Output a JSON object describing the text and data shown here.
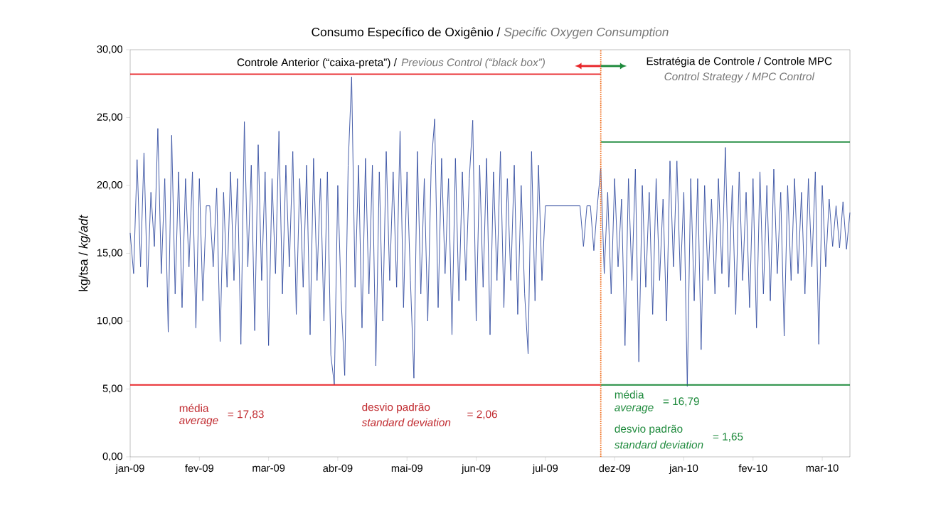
{
  "chart_data": {
    "type": "line",
    "title": "Consumo Específico de Oxigênio /",
    "subtitle": "Specific Oxygen Consumption",
    "ylabel": "kg/tsa / *kg/adt*",
    "categories": [
      "jan-09",
      null,
      null,
      null,
      null,
      null,
      null,
      null,
      null,
      null,
      null,
      null,
      null,
      null,
      null,
      null,
      null,
      null,
      null,
      null,
      "fev-09",
      null,
      null,
      null,
      null,
      null,
      null,
      null,
      null,
      null,
      null,
      null,
      null,
      null,
      null,
      null,
      null,
      null,
      null,
      null,
      "mar-09",
      null,
      null,
      null,
      null,
      null,
      null,
      null,
      null,
      null,
      null,
      null,
      null,
      null,
      null,
      null,
      null,
      null,
      null,
      null,
      "abr-09",
      null,
      null,
      null,
      null,
      null,
      null,
      null,
      null,
      null,
      null,
      null,
      null,
      null,
      null,
      null,
      null,
      null,
      null,
      null,
      "mai-09",
      null,
      null,
      null,
      null,
      null,
      null,
      null,
      null,
      null,
      null,
      null,
      null,
      null,
      null,
      null,
      null,
      null,
      null,
      null,
      "jun-09",
      null,
      null,
      null,
      null,
      null,
      null,
      null,
      null,
      null,
      null,
      null,
      null,
      null,
      null,
      null,
      null,
      null,
      null,
      null,
      "jul-09",
      null,
      null,
      null,
      null,
      null,
      null,
      null,
      null,
      null,
      null,
      null,
      null,
      null,
      null,
      null,
      null,
      null,
      null,
      null,
      "dez-09",
      null,
      null,
      null,
      null,
      null,
      null,
      null,
      null,
      null,
      null,
      null,
      null,
      null,
      null,
      null,
      null,
      null,
      null,
      null,
      "jan-10",
      null,
      null,
      null,
      null,
      null,
      null,
      null,
      null,
      null,
      null,
      null,
      null,
      null,
      null,
      null,
      null,
      null,
      null,
      null,
      "fev-10",
      null,
      null,
      null,
      null,
      null,
      null,
      null,
      null,
      null,
      null,
      null,
      null,
      null,
      null,
      null,
      null,
      null,
      null,
      null,
      "mar-10",
      null,
      null,
      null,
      null,
      null,
      null,
      null,
      null
    ],
    "ylim": [
      0,
      30
    ],
    "yticks": [
      {
        "value": 0,
        "label": "0,00"
      },
      {
        "value": 5,
        "label": "5,00"
      },
      {
        "value": 10,
        "label": "10,00"
      },
      {
        "value": 15,
        "label": "15,00"
      },
      {
        "value": 20,
        "label": "20,00"
      },
      {
        "value": 25,
        "label": "25,00"
      },
      {
        "value": 30,
        "label": "30,00"
      }
    ],
    "series": [
      {
        "color": "#3a53a4",
        "values": [
          16.5,
          13.5,
          21.9,
          14.0,
          22.4,
          12.5,
          19.5,
          15.5,
          24.2,
          13.5,
          20.5,
          9.2,
          23.7,
          12.0,
          21.0,
          11.0,
          20.5,
          14.0,
          21.0,
          9.5,
          20.5,
          11.5,
          18.5,
          18.5,
          14.0,
          19.8,
          8.5,
          19.5,
          12.5,
          21.0,
          13.0,
          20.5,
          8.3,
          24.7,
          14.0,
          21.5,
          9.3,
          23.0,
          13.0,
          21.0,
          8.2,
          20.5,
          13.5,
          24.0,
          12.0,
          21.5,
          14.0,
          22.5,
          10.5,
          20.5,
          12.5,
          21.5,
          9.0,
          22.0,
          13.0,
          20.5,
          10.0,
          21.0,
          7.5,
          5.3,
          20.0,
          11.5,
          6.0,
          21.5,
          28.0,
          12.5,
          21.5,
          9.5,
          22.0,
          12.0,
          21.5,
          6.7,
          21.0,
          10.0,
          22.5,
          13.0,
          21.0,
          12.5,
          24.0,
          11.0,
          21.0,
          13.0,
          5.8,
          22.5,
          12.0,
          20.5,
          10.0,
          21.5,
          24.9,
          11.0,
          22.0,
          13.5,
          20.5,
          9.0,
          22.0,
          11.5,
          21.0,
          13.0,
          20.5,
          24.8,
          10.0,
          21.5,
          12.5,
          22.0,
          9.0,
          21.0,
          13.0,
          22.5,
          11.0,
          20.5,
          13.0,
          21.5,
          10.5,
          20.0,
          12.0,
          7.6,
          22.5,
          11.5,
          21.5,
          13.0,
          18.5,
          18.5,
          18.5,
          18.5,
          18.5,
          18.5,
          18.5,
          18.5,
          18.5,
          18.5,
          18.5,
          15.5,
          18.5,
          18.5,
          15.2,
          18.5,
          21.3,
          13.5,
          19.5,
          12.0,
          20.5,
          14.0,
          19.0,
          8.2,
          20.5,
          13.0,
          21.2,
          7.0,
          20.0,
          12.5,
          19.5,
          10.5,
          20.5,
          13.0,
          19.0,
          10.0,
          21.8,
          14.0,
          21.8,
          13.0,
          19.5,
          5.2,
          20.5,
          11.5,
          20.5,
          7.9,
          20.0,
          13.0,
          19.0,
          12.0,
          20.5,
          13.5,
          22.8,
          12.5,
          20.0,
          10.5,
          21.0,
          13.0,
          19.5,
          11.0,
          20.5,
          9.5,
          21.0,
          12.0,
          20.0,
          11.5,
          21.2,
          13.5,
          19.5,
          8.9,
          20.0,
          13.0,
          20.5,
          13.5,
          19.5,
          12.0,
          20.5,
          14.0,
          21.0,
          8.3,
          20.0,
          14.0,
          19.0,
          15.5,
          18.5,
          15.4,
          18.8,
          15.3,
          18.0
        ]
      },
      {
        "type": "line",
        "color": "#e8262a",
        "values": [
          28.2,
          28.2,
          28.2,
          28.2,
          28.2,
          28.2,
          28.2,
          28.2,
          28.2,
          28.2,
          28.2,
          28.2,
          28.2,
          28.2,
          28.2,
          28.2,
          28.2,
          28.2,
          28.2,
          28.2,
          28.2,
          28.2,
          28.2,
          28.2,
          28.2,
          28.2,
          28.2,
          28.2,
          28.2,
          28.2,
          28.2,
          28.2,
          28.2,
          28.2,
          28.2,
          28.2,
          28.2,
          28.2,
          28.2,
          28.2,
          28.2,
          28.2,
          28.2,
          28.2,
          28.2,
          28.2,
          28.2,
          28.2,
          28.2,
          28.2,
          28.2,
          28.2,
          28.2,
          28.2,
          28.2,
          28.2,
          28.2,
          28.2,
          28.2,
          28.2,
          28.2,
          28.2,
          28.2,
          28.2,
          28.2,
          28.2,
          28.2,
          28.2,
          28.2,
          28.2,
          28.2,
          28.2,
          28.2,
          28.2,
          28.2,
          28.2,
          28.2,
          28.2,
          28.2,
          28.2,
          28.2,
          28.2,
          28.2,
          28.2,
          28.2,
          28.2,
          28.2,
          28.2,
          28.2,
          28.2,
          28.2,
          28.2,
          28.2,
          28.2,
          28.2,
          28.2,
          28.2,
          28.2,
          28.2,
          28.2,
          28.2,
          28.2,
          28.2,
          28.2,
          28.2,
          28.2,
          28.2,
          28.2,
          28.2,
          28.2,
          28.2,
          28.2,
          28.2,
          28.2,
          28.2,
          28.2,
          28.2,
          28.2,
          28.2,
          28.2,
          28.2,
          28.2,
          28.2,
          28.2,
          28.2,
          28.2,
          28.2,
          28.2,
          28.2,
          28.2,
          28.2,
          28.2,
          28.2,
          28.2,
          28.2,
          28.2,
          28.2,
          null,
          null,
          null,
          null,
          null,
          null,
          null,
          null,
          null,
          null,
          null,
          null,
          null,
          null,
          null,
          null,
          null,
          null,
          null,
          null,
          null,
          null,
          null,
          null,
          null,
          null,
          null,
          null,
          null,
          null,
          null,
          null,
          null,
          null,
          null,
          null,
          null,
          null,
          null,
          null,
          null,
          null,
          null,
          null,
          null,
          null,
          null,
          null,
          null,
          null,
          null,
          null,
          null,
          null,
          null,
          null,
          null,
          null,
          null,
          null,
          null,
          null,
          null,
          null,
          null,
          null,
          null,
          null,
          null,
          null,
          null,
          null
        ]
      },
      {
        "type": "line",
        "color": "#e8262a",
        "values": [
          5.3,
          5.3,
          5.3,
          5.3,
          5.3,
          5.3,
          5.3,
          5.3,
          5.3,
          5.3,
          5.3,
          5.3,
          5.3,
          5.3,
          5.3,
          5.3,
          5.3,
          5.3,
          5.3,
          5.3,
          5.3,
          5.3,
          5.3,
          5.3,
          5.3,
          5.3,
          5.3,
          5.3,
          5.3,
          5.3,
          5.3,
          5.3,
          5.3,
          5.3,
          5.3,
          5.3,
          5.3,
          5.3,
          5.3,
          5.3,
          5.3,
          5.3,
          5.3,
          5.3,
          5.3,
          5.3,
          5.3,
          5.3,
          5.3,
          5.3,
          5.3,
          5.3,
          5.3,
          5.3,
          5.3,
          5.3,
          5.3,
          5.3,
          5.3,
          5.3,
          5.3,
          5.3,
          5.3,
          5.3,
          5.3,
          5.3,
          5.3,
          5.3,
          5.3,
          5.3,
          5.3,
          5.3,
          5.3,
          5.3,
          5.3,
          5.3,
          5.3,
          5.3,
          5.3,
          5.3,
          5.3,
          5.3,
          5.3,
          5.3,
          5.3,
          5.3,
          5.3,
          5.3,
          5.3,
          5.3,
          5.3,
          5.3,
          5.3,
          5.3,
          5.3,
          5.3,
          5.3,
          5.3,
          5.3,
          5.3,
          5.3,
          5.3,
          5.3,
          5.3,
          5.3,
          5.3,
          5.3,
          5.3,
          5.3,
          5.3,
          5.3,
          5.3,
          5.3,
          5.3,
          5.3,
          5.3,
          5.3,
          5.3,
          5.3,
          5.3,
          5.3,
          5.3,
          5.3,
          5.3,
          5.3,
          5.3,
          5.3,
          5.3,
          5.3,
          5.3,
          5.3,
          5.3,
          5.3,
          5.3,
          5.3,
          5.3,
          5.3,
          null,
          null,
          null,
          null,
          null,
          null,
          null,
          null,
          null,
          null,
          null,
          null,
          null,
          null,
          null,
          null,
          null,
          null,
          null,
          null,
          null,
          null,
          null,
          null,
          null,
          null,
          null,
          null,
          null,
          null,
          null,
          null,
          null,
          null,
          null,
          null,
          null,
          null,
          null,
          null,
          null,
          null,
          null,
          null,
          null,
          null,
          null,
          null,
          null,
          null,
          null,
          null,
          null,
          null,
          null,
          null,
          null,
          null,
          null,
          null,
          null,
          null,
          null,
          null,
          null,
          null,
          null,
          null,
          null,
          null,
          null,
          null
        ]
      },
      {
        "type": "line",
        "color": "#1e8a3c",
        "values": [
          null,
          null,
          null,
          null,
          null,
          null,
          null,
          null,
          null,
          null,
          null,
          null,
          null,
          null,
          null,
          null,
          null,
          null,
          null,
          null,
          null,
          null,
          null,
          null,
          null,
          null,
          null,
          null,
          null,
          null,
          null,
          null,
          null,
          null,
          null,
          null,
          null,
          null,
          null,
          null,
          null,
          null,
          null,
          null,
          null,
          null,
          null,
          null,
          null,
          null,
          null,
          null,
          null,
          null,
          null,
          null,
          null,
          null,
          null,
          null,
          null,
          null,
          null,
          null,
          null,
          null,
          null,
          null,
          null,
          null,
          null,
          null,
          null,
          null,
          null,
          null,
          null,
          null,
          null,
          null,
          null,
          null,
          null,
          null,
          null,
          null,
          null,
          null,
          null,
          null,
          null,
          null,
          null,
          null,
          null,
          null,
          null,
          null,
          null,
          null,
          null,
          null,
          null,
          null,
          null,
          null,
          null,
          null,
          null,
          null,
          null,
          null,
          null,
          null,
          null,
          null,
          null,
          null,
          null,
          null,
          null,
          null,
          null,
          null,
          null,
          null,
          null,
          null,
          null,
          null,
          null,
          null,
          null,
          null,
          null,
          null,
          23.2,
          23.2,
          23.2,
          23.2,
          23.2,
          23.2,
          23.2,
          23.2,
          23.2,
          23.2,
          23.2,
          23.2,
          23.2,
          23.2,
          23.2,
          23.2,
          23.2,
          23.2,
          23.2,
          23.2,
          23.2,
          23.2,
          23.2,
          23.2,
          23.2,
          23.2,
          23.2,
          23.2,
          23.2,
          23.2,
          23.2,
          23.2,
          23.2,
          23.2,
          23.2,
          23.2,
          23.2,
          23.2,
          23.2,
          23.2,
          23.2,
          23.2,
          23.2,
          23.2,
          23.2,
          23.2,
          23.2,
          23.2,
          23.2,
          23.2,
          23.2,
          23.2,
          23.2,
          23.2,
          23.2,
          23.2,
          23.2,
          23.2,
          23.2,
          23.2,
          23.2,
          23.2,
          23.2,
          23.2,
          23.2,
          23.2,
          23.2,
          23.2,
          23.2,
          23.2,
          23.2,
          23.2,
          23.2
        ]
      },
      {
        "type": "line",
        "color": "#1e8a3c",
        "values": [
          null,
          null,
          null,
          null,
          null,
          null,
          null,
          null,
          null,
          null,
          null,
          null,
          null,
          null,
          null,
          null,
          null,
          null,
          null,
          null,
          null,
          null,
          null,
          null,
          null,
          null,
          null,
          null,
          null,
          null,
          null,
          null,
          null,
          null,
          null,
          null,
          null,
          null,
          null,
          null,
          null,
          null,
          null,
          null,
          null,
          null,
          null,
          null,
          null,
          null,
          null,
          null,
          null,
          null,
          null,
          null,
          null,
          null,
          null,
          null,
          null,
          null,
          null,
          null,
          null,
          null,
          null,
          null,
          null,
          null,
          null,
          null,
          null,
          null,
          null,
          null,
          null,
          null,
          null,
          null,
          null,
          null,
          null,
          null,
          null,
          null,
          null,
          null,
          null,
          null,
          null,
          null,
          null,
          null,
          null,
          null,
          null,
          null,
          null,
          null,
          null,
          null,
          null,
          null,
          null,
          null,
          null,
          null,
          null,
          null,
          null,
          null,
          null,
          null,
          null,
          null,
          null,
          null,
          null,
          null,
          null,
          null,
          null,
          null,
          null,
          null,
          null,
          null,
          null,
          null,
          null,
          null,
          null,
          null,
          null,
          null,
          5.3,
          5.3,
          5.3,
          5.3,
          5.3,
          5.3,
          5.3,
          5.3,
          5.3,
          5.3,
          5.3,
          5.3,
          5.3,
          5.3,
          5.3,
          5.3,
          5.3,
          5.3,
          5.3,
          5.3,
          5.3,
          5.3,
          5.3,
          5.3,
          5.3,
          5.3,
          5.3,
          5.3,
          5.3,
          5.3,
          5.3,
          5.3,
          5.3,
          5.3,
          5.3,
          5.3,
          5.3,
          5.3,
          5.3,
          5.3,
          5.3,
          5.3,
          5.3,
          5.3,
          5.3,
          5.3,
          5.3,
          5.3,
          5.3,
          5.3,
          5.3,
          5.3,
          5.3,
          5.3,
          5.3,
          5.3,
          5.3,
          5.3,
          5.3,
          5.3,
          5.3,
          5.3,
          5.3,
          5.3,
          5.3,
          5.3,
          5.3,
          5.3,
          5.3,
          5.3,
          5.3,
          5.3,
          5.3
        ]
      }
    ],
    "annotations": [
      "Controle Anterior (“caixa-preta”) /",
      "Previous Control (“black box”)",
      "Estratégia de Controle / Controle MPC",
      "Control Strategy / MPC Control",
      "média",
      "average",
      "= 17,83",
      "desvio padrão",
      "standard deviation",
      "= 2,06",
      "média",
      "average",
      "= 16,79",
      "desvio padrão",
      "standard deviation",
      "= 1,65"
    ]
  }
}
